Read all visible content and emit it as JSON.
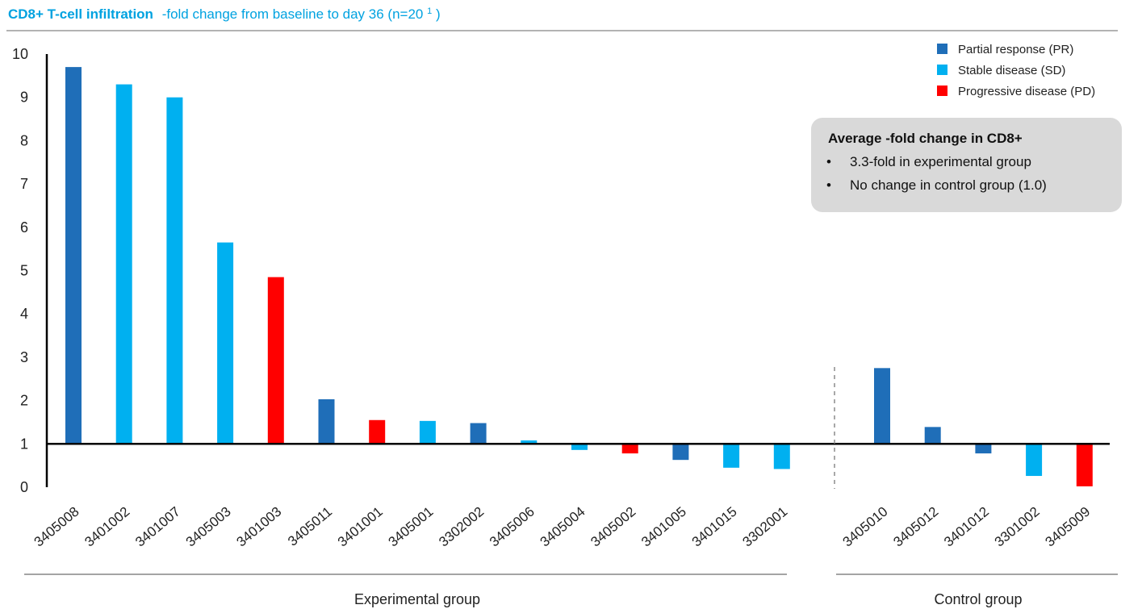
{
  "chart_data": {
    "type": "bar",
    "title": "CD8+ T-cell infiltration",
    "subtitle_prefix": "-fold change from baseline to day 36 (n=20",
    "subtitle_sup": "1",
    "subtitle_suffix": ")",
    "ylim": [
      0,
      10
    ],
    "y_ticks": [
      "0",
      "1",
      "2",
      "3",
      "4",
      "5",
      "6",
      "7",
      "8",
      "9",
      "10"
    ],
    "baseline": 1,
    "grid": false,
    "legend_position": "top-right",
    "legend": [
      {
        "key": "PR",
        "label": "Partial response (PR)",
        "color": "#1f6eb8"
      },
      {
        "key": "SD",
        "label": "Stable disease (SD)",
        "color": "#00b0f0"
      },
      {
        "key": "PD",
        "label": "Progressive disease (PD)",
        "color": "#ff0000"
      }
    ],
    "groups": [
      {
        "label": "Experimental group",
        "categories": [
          "3405008",
          "3401002",
          "3401007",
          "3405003",
          "3401003",
          "3405011",
          "3401001",
          "3405001",
          "3302002",
          "3405006",
          "3405004",
          "3405002",
          "3401005",
          "3401015",
          "3302001"
        ],
        "values": [
          9.7,
          9.3,
          9.0,
          5.65,
          4.85,
          2.03,
          1.55,
          1.53,
          1.48,
          1.08,
          0.86,
          0.78,
          0.63,
          0.45,
          0.42
        ],
        "response": [
          "PR",
          "SD",
          "SD",
          "SD",
          "PD",
          "PR",
          "PD",
          "SD",
          "PR",
          "SD",
          "SD",
          "PD",
          "PR",
          "SD",
          "SD"
        ]
      },
      {
        "label": "Control group",
        "categories": [
          "3405010",
          "3405012",
          "3401012",
          "3301002",
          "3405009"
        ],
        "values": [
          2.75,
          1.39,
          0.78,
          0.26,
          0.02
        ],
        "response": [
          "PR",
          "PR",
          "PR",
          "SD",
          "PD"
        ]
      }
    ],
    "callout": {
      "title": "Average -fold change in CD8+",
      "items": [
        "3.3-fold in experimental group",
        "No change in control group (1.0)"
      ]
    }
  }
}
